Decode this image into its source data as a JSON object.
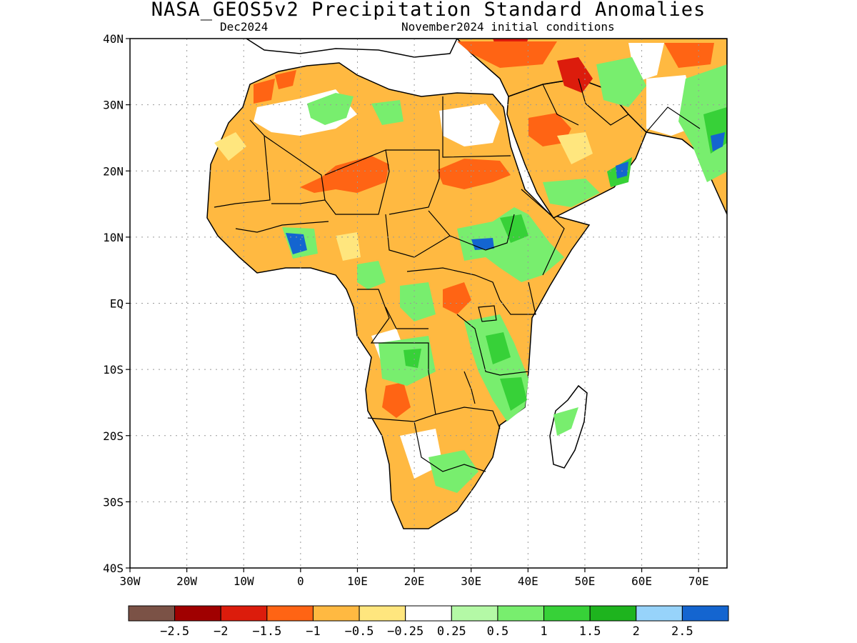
{
  "title": "NASA_GEOS5v2 Precipitation Standard Anomalies",
  "subtitle_left": "Dec2024",
  "subtitle_right": "November2024 initial conditions",
  "map": {
    "lon_range": [
      -30,
      75
    ],
    "lat_range": [
      -40,
      40
    ],
    "lat_labels": [
      "40N",
      "30N",
      "20N",
      "10N",
      "EQ",
      "10S",
      "20S",
      "30S",
      "40S"
    ],
    "lon_labels": [
      "30W",
      "20W",
      "10W",
      "0",
      "10E",
      "20E",
      "30E",
      "40E",
      "50E",
      "60E",
      "70E"
    ],
    "grid": true
  },
  "colorbar": {
    "labels": [
      "−2.5",
      "−2",
      "−1.5",
      "−1",
      "−0.5",
      "−0.25",
      "0.25",
      "0.5",
      "1",
      "1.5",
      "2",
      "2.5"
    ],
    "colors": [
      "#7b5246",
      "#a00000",
      "#dc1c0c",
      "#ff6414",
      "#ffb941",
      "#ffe67e",
      "#ffffff",
      "#b4f9a6",
      "#78ee6e",
      "#37d138",
      "#1eb41e",
      "#97d3fa",
      "#1465d0"
    ]
  },
  "colors": {
    "land_dry": "#ffb941",
    "land_very_dry": "#ff6414",
    "land_extreme_dry": "#dc1c0c",
    "land_slight_dry": "#ffe67e",
    "land_wet": "#78ee6e",
    "land_very_wet": "#37d138",
    "land_extreme_wet": "#1465d0"
  }
}
